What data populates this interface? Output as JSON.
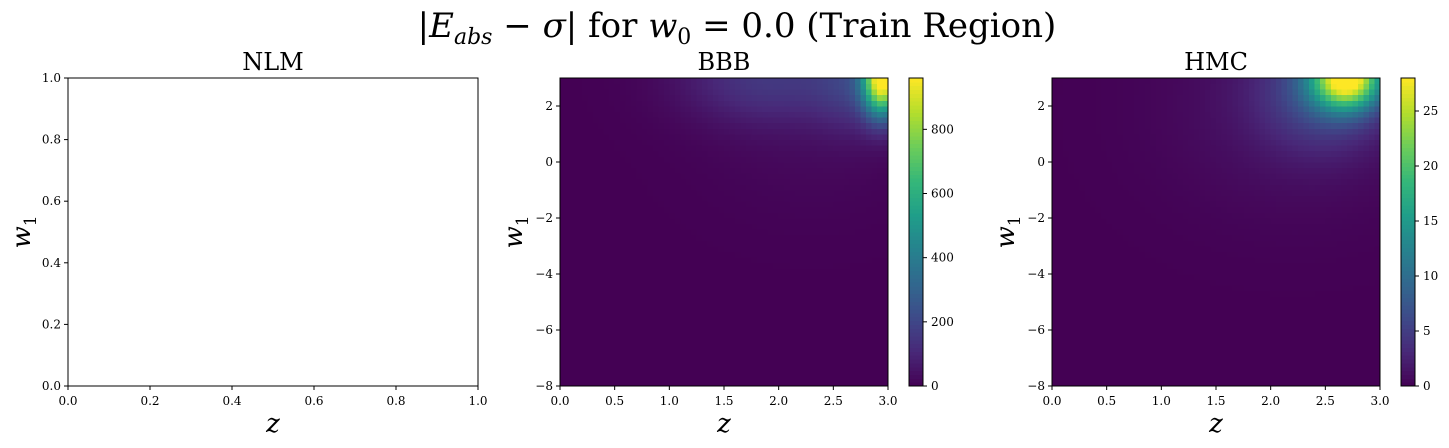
{
  "figure": {
    "title_parts": [
      "|",
      "E",
      "abs",
      " − ",
      "σ",
      "| for ",
      "w",
      "0",
      " = 0.0 (Train Region)"
    ]
  },
  "chart_data": [
    {
      "type": "heatmap",
      "title": "NLM",
      "xlabel": "z",
      "ylabel_main": "w",
      "ylabel_sub": "1",
      "xlim": [
        0,
        1
      ],
      "ylim": [
        0,
        1
      ],
      "x_ticks": [
        0.0,
        0.2,
        0.4,
        0.6,
        0.8,
        1.0
      ],
      "y_ticks": [
        0.0,
        0.2,
        0.4,
        0.6,
        0.8,
        1.0
      ],
      "x_tick_labels": [
        "0.0",
        "0.2",
        "0.4",
        "0.6",
        "0.8",
        "1.0"
      ],
      "y_tick_labels": [
        "0.0",
        "0.2",
        "0.4",
        "0.6",
        "0.8",
        "1.0"
      ],
      "has_data": false,
      "colorbar": null
    },
    {
      "type": "heatmap",
      "title": "BBB",
      "xlabel": "z",
      "ylabel_main": "w",
      "ylabel_sub": "1",
      "xlim": [
        0,
        3
      ],
      "ylim": [
        -8,
        3
      ],
      "x_ticks": [
        0.0,
        0.5,
        1.0,
        1.5,
        2.0,
        2.5,
        3.0
      ],
      "y_ticks": [
        -8,
        -6,
        -4,
        -2,
        0,
        2
      ],
      "x_tick_labels": [
        "0.0",
        "0.5",
        "1.0",
        "1.5",
        "2.0",
        "2.5",
        "3.0"
      ],
      "y_tick_labels": [
        "−8",
        "−6",
        "−4",
        "−2",
        "0",
        "2"
      ],
      "has_data": true,
      "colormap": "viridis",
      "grid": {
        "nx": 60,
        "ny": 55
      },
      "blobs": [
        {
          "cx": 2.95,
          "cy": 3.0,
          "sx": 0.12,
          "sy": 0.9,
          "amp": 960
        },
        {
          "cx": 2.7,
          "cy": 2.9,
          "sx": 0.25,
          "sy": 1.2,
          "amp": 130
        },
        {
          "cx": 1.9,
          "cy": 3.0,
          "sx": 0.55,
          "sy": 1.1,
          "amp": 140
        },
        {
          "cx": 2.3,
          "cy": 1.5,
          "sx": 0.7,
          "sy": 2.2,
          "amp": 25
        }
      ],
      "colorbar": {
        "vmin": 0,
        "vmax": 960,
        "ticks": [
          0,
          200,
          400,
          600,
          800
        ],
        "tick_labels": [
          "0",
          "200",
          "400",
          "600",
          "800"
        ]
      }
    },
    {
      "type": "heatmap",
      "title": "HMC",
      "xlabel": "z",
      "ylabel_main": "w",
      "ylabel_sub": "1",
      "xlim": [
        0,
        3
      ],
      "ylim": [
        -8,
        3
      ],
      "x_ticks": [
        0.0,
        0.5,
        1.0,
        1.5,
        2.0,
        2.5,
        3.0
      ],
      "y_ticks": [
        -8,
        -6,
        -4,
        -2,
        0,
        2
      ],
      "x_tick_labels": [
        "0.0",
        "0.5",
        "1.0",
        "1.5",
        "2.0",
        "2.5",
        "3.0"
      ],
      "y_tick_labels": [
        "−8",
        "−6",
        "−4",
        "−2",
        "0",
        "2"
      ],
      "has_data": true,
      "colormap": "viridis",
      "grid": {
        "nx": 60,
        "ny": 55
      },
      "blobs": [
        {
          "cx": 2.7,
          "cy": 3.0,
          "sx": 0.22,
          "sy": 0.75,
          "amp": 26
        },
        {
          "cx": 2.5,
          "cy": 2.6,
          "sx": 0.4,
          "sy": 1.4,
          "amp": 6
        },
        {
          "cx": 2.2,
          "cy": 2.0,
          "sx": 0.8,
          "sy": 2.5,
          "amp": 1.5
        }
      ],
      "colorbar": {
        "vmin": 0,
        "vmax": 28,
        "ticks": [
          0,
          5,
          10,
          15,
          20,
          25
        ],
        "tick_labels": [
          "0",
          "5",
          "10",
          "15",
          "20",
          "25"
        ]
      }
    }
  ]
}
